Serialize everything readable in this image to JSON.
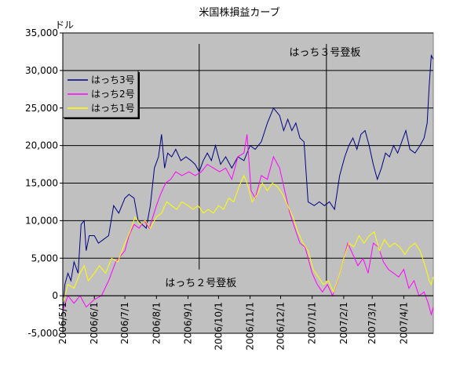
{
  "chart_data": {
    "type": "line",
    "title": "米国株損益カーブ",
    "ylabel": "ドル",
    "xlabel": "",
    "ylim": [
      -5000,
      35000
    ],
    "yticks": [
      -5000,
      0,
      5000,
      10000,
      15000,
      20000,
      25000,
      30000,
      35000
    ],
    "ytick_labels": [
      "-5,000",
      "0",
      "5,000",
      "10,000",
      "15,000",
      "20,000",
      "25,000",
      "30,000",
      "35,000"
    ],
    "xlim": [
      "2006/5/1",
      "2007/4/30"
    ],
    "xticks": [
      "2006/5/1",
      "2006/6/1",
      "2006/7/1",
      "2006/8/1",
      "2006/9/1",
      "2006/10/1",
      "2006/11/1",
      "2006/12/1",
      "2007/1/1",
      "2007/2/1",
      "2007/3/1",
      "2007/4/1"
    ],
    "xtick_labels": [
      "2006/5/1",
      "2006/6/1",
      "2006/7/1",
      "2006/8/1",
      "2006/9/1",
      "2006/10/1",
      "2006/11/1",
      "2006/12/1",
      "2007/1/1",
      "2007/2/1",
      "2007/3/1",
      "2007/4/1"
    ],
    "grid": "horizontal",
    "legend_position": "top-left",
    "plot_background": "#c0c0c0",
    "annotations": [
      {
        "text": "はっち３号登板",
        "x": "2007/1/15",
        "label_y": 32500,
        "label_side": "right"
      },
      {
        "text": "はっち２号登板",
        "x": "2006/9/12",
        "label_y": 1800,
        "label_side": "center"
      }
    ],
    "series": [
      {
        "name": "はっち3号",
        "color": "#000080",
        "points": [
          [
            "2006/5/1",
            -2500
          ],
          [
            "2006/5/3",
            1500
          ],
          [
            "2006/5/6",
            3000
          ],
          [
            "2006/5/9",
            2000
          ],
          [
            "2006/5/12",
            4500
          ],
          [
            "2006/5/16",
            3000
          ],
          [
            "2006/5/19",
            9500
          ],
          [
            "2006/5/22",
            10000
          ],
          [
            "2006/5/24",
            6000
          ],
          [
            "2006/5/27",
            8000
          ],
          [
            "2006/6/1",
            8000
          ],
          [
            "2006/6/5",
            7000
          ],
          [
            "2006/6/10",
            7500
          ],
          [
            "2006/6/15",
            8000
          ],
          [
            "2006/6/20",
            12000
          ],
          [
            "2006/6/25",
            11000
          ],
          [
            "2006/7/1",
            13000
          ],
          [
            "2006/7/5",
            13500
          ],
          [
            "2006/7/10",
            13000
          ],
          [
            "2006/7/14",
            10000
          ],
          [
            "2006/7/18",
            9500
          ],
          [
            "2006/7/22",
            9000
          ],
          [
            "2006/7/26",
            12000
          ],
          [
            "2006/7/30",
            17000
          ],
          [
            "2006/8/3",
            18500
          ],
          [
            "2006/8/6",
            21500
          ],
          [
            "2006/8/9",
            17000
          ],
          [
            "2006/8/12",
            19000
          ],
          [
            "2006/8/16",
            18500
          ],
          [
            "2006/8/20",
            19500
          ],
          [
            "2006/8/25",
            18000
          ],
          [
            "2006/8/30",
            18500
          ],
          [
            "2006/9/4",
            18000
          ],
          [
            "2006/9/8",
            17500
          ],
          [
            "2006/9/12",
            16500
          ],
          [
            "2006/9/16",
            18000
          ],
          [
            "2006/9/20",
            19000
          ],
          [
            "2006/9/24",
            18000
          ],
          [
            "2006/9/28",
            20000
          ],
          [
            "2006/10/3",
            17500
          ],
          [
            "2006/10/8",
            18500
          ],
          [
            "2006/10/14",
            17000
          ],
          [
            "2006/10/20",
            18500
          ],
          [
            "2006/10/26",
            18000
          ],
          [
            "2006/11/1",
            20000
          ],
          [
            "2006/11/6",
            19500
          ],
          [
            "2006/11/12",
            20500
          ],
          [
            "2006/11/18",
            23000
          ],
          [
            "2006/11/24",
            25000
          ],
          [
            "2006/11/30",
            24000
          ],
          [
            "2006/12/4",
            22000
          ],
          [
            "2006/12/8",
            23500
          ],
          [
            "2006/12/12",
            22000
          ],
          [
            "2006/12/16",
            23000
          ],
          [
            "2006/12/20",
            21000
          ],
          [
            "2006/12/24",
            20500
          ],
          [
            "2006/12/28",
            12500
          ],
          [
            "2007/1/3",
            12000
          ],
          [
            "2007/1/8",
            12500
          ],
          [
            "2007/1/13",
            12000
          ],
          [
            "2007/1/18",
            12500
          ],
          [
            "2007/1/23",
            11500
          ],
          [
            "2007/1/28",
            16000
          ],
          [
            "2007/2/2",
            18500
          ],
          [
            "2007/2/6",
            20000
          ],
          [
            "2007/2/10",
            21000
          ],
          [
            "2007/2/14",
            19500
          ],
          [
            "2007/2/18",
            21500
          ],
          [
            "2007/2/22",
            22000
          ],
          [
            "2007/2/26",
            20000
          ],
          [
            "2007/3/2",
            17500
          ],
          [
            "2007/3/6",
            15500
          ],
          [
            "2007/3/10",
            17000
          ],
          [
            "2007/3/14",
            19000
          ],
          [
            "2007/3/18",
            18500
          ],
          [
            "2007/3/22",
            20000
          ],
          [
            "2007/3/26",
            19000
          ],
          [
            "2007/3/30",
            20500
          ],
          [
            "2007/4/3",
            22000
          ],
          [
            "2007/4/7",
            19500
          ],
          [
            "2007/4/12",
            19000
          ],
          [
            "2007/4/17",
            20000
          ],
          [
            "2007/4/21",
            21000
          ],
          [
            "2007/4/24",
            23000
          ],
          [
            "2007/4/26",
            28000
          ],
          [
            "2007/4/28",
            32000
          ],
          [
            "2007/4/30",
            31500
          ]
        ]
      },
      {
        "name": "はっち2号",
        "color": "#ff00ff",
        "points": [
          [
            "2006/5/1",
            -2000
          ],
          [
            "2006/5/6",
            0
          ],
          [
            "2006/5/12",
            -1000
          ],
          [
            "2006/5/18",
            0
          ],
          [
            "2006/5/24",
            -1500
          ],
          [
            "2006/6/1",
            -500
          ],
          [
            "2006/6/8",
            0
          ],
          [
            "2006/6/15",
            2000
          ],
          [
            "2006/6/22",
            4500
          ],
          [
            "2006/7/1",
            6000
          ],
          [
            "2006/7/5",
            8000
          ],
          [
            "2006/7/10",
            9500
          ],
          [
            "2006/7/15",
            9000
          ],
          [
            "2006/7/20",
            10000
          ],
          [
            "2006/7/25",
            9000
          ],
          [
            "2006/8/1",
            12000
          ],
          [
            "2006/8/5",
            13500
          ],
          [
            "2006/8/10",
            15000
          ],
          [
            "2006/8/15",
            15500
          ],
          [
            "2006/8/20",
            16500
          ],
          [
            "2006/8/26",
            16000
          ],
          [
            "2006/9/2",
            16500
          ],
          [
            "2006/9/8",
            16000
          ],
          [
            "2006/9/14",
            16500
          ],
          [
            "2006/9/20",
            17500
          ],
          [
            "2006/9/26",
            17000
          ],
          [
            "2006/10/2",
            16500
          ],
          [
            "2006/10/8",
            17000
          ],
          [
            "2006/10/14",
            15500
          ],
          [
            "2006/10/20",
            18500
          ],
          [
            "2006/10/26",
            19000
          ],
          [
            "2006/10/29",
            21500
          ],
          [
            "2006/11/2",
            14000
          ],
          [
            "2006/11/6",
            13000
          ],
          [
            "2006/11/12",
            16000
          ],
          [
            "2006/11/18",
            15500
          ],
          [
            "2006/11/24",
            18500
          ],
          [
            "2006/11/30",
            17000
          ],
          [
            "2006/12/5",
            14000
          ],
          [
            "2006/12/10",
            11000
          ],
          [
            "2006/12/15",
            9000
          ],
          [
            "2006/12/20",
            7000
          ],
          [
            "2006/12/25",
            6500
          ],
          [
            "2007/1/1",
            3000
          ],
          [
            "2007/1/6",
            1500
          ],
          [
            "2007/1/11",
            500
          ],
          [
            "2007/1/16",
            1500
          ],
          [
            "2007/1/21",
            0
          ],
          [
            "2007/1/26",
            2000
          ],
          [
            "2007/1/31",
            4500
          ],
          [
            "2007/2/5",
            7000
          ],
          [
            "2007/2/10",
            5500
          ],
          [
            "2007/2/15",
            4000
          ],
          [
            "2007/2/20",
            5000
          ],
          [
            "2007/2/25",
            3000
          ],
          [
            "2007/3/2",
            7000
          ],
          [
            "2007/3/7",
            6500
          ],
          [
            "2007/3/12",
            4500
          ],
          [
            "2007/3/17",
            3500
          ],
          [
            "2007/3/22",
            3000
          ],
          [
            "2007/3/27",
            2500
          ],
          [
            "2007/4/1",
            3500
          ],
          [
            "2007/4/6",
            1000
          ],
          [
            "2007/4/11",
            2000
          ],
          [
            "2007/4/16",
            0
          ],
          [
            "2007/4/21",
            500
          ],
          [
            "2007/4/25",
            -1000
          ],
          [
            "2007/4/28",
            -2500
          ],
          [
            "2007/4/30",
            -1500
          ]
        ]
      },
      {
        "name": "はっち1号",
        "color": "#ffff00",
        "points": [
          [
            "2006/5/1",
            -1000
          ],
          [
            "2006/5/6",
            1500
          ],
          [
            "2006/5/12",
            1000
          ],
          [
            "2006/5/18",
            3000
          ],
          [
            "2006/5/22",
            4000
          ],
          [
            "2006/5/26",
            2000
          ],
          [
            "2006/6/1",
            3000
          ],
          [
            "2006/6/6",
            4000
          ],
          [
            "2006/6/12",
            3000
          ],
          [
            "2006/6/18",
            5000
          ],
          [
            "2006/6/24",
            4500
          ],
          [
            "2006/7/1",
            7000
          ],
          [
            "2006/7/6",
            8500
          ],
          [
            "2006/7/11",
            10500
          ],
          [
            "2006/7/16",
            9500
          ],
          [
            "2006/7/21",
            10000
          ],
          [
            "2006/7/26",
            9000
          ],
          [
            "2006/8/1",
            10500
          ],
          [
            "2006/8/6",
            11000
          ],
          [
            "2006/8/11",
            12500
          ],
          [
            "2006/8/16",
            12000
          ],
          [
            "2006/8/21",
            11500
          ],
          [
            "2006/8/26",
            12500
          ],
          [
            "2006/9/1",
            12000
          ],
          [
            "2006/9/6",
            11500
          ],
          [
            "2006/9/11",
            12000
          ],
          [
            "2006/9/16",
            11000
          ],
          [
            "2006/9/21",
            11500
          ],
          [
            "2006/9/26",
            11000
          ],
          [
            "2006/10/1",
            12000
          ],
          [
            "2006/10/6",
            11500
          ],
          [
            "2006/10/11",
            13000
          ],
          [
            "2006/10/16",
            12500
          ],
          [
            "2006/10/21",
            14500
          ],
          [
            "2006/10/26",
            16000
          ],
          [
            "2006/10/29",
            15000
          ],
          [
            "2006/11/3",
            12500
          ],
          [
            "2006/11/8",
            13500
          ],
          [
            "2006/11/13",
            15000
          ],
          [
            "2006/11/18",
            14000
          ],
          [
            "2006/11/23",
            15000
          ],
          [
            "2006/11/28",
            14500
          ],
          [
            "2006/12/3",
            13500
          ],
          [
            "2006/12/8",
            12000
          ],
          [
            "2006/12/13",
            10500
          ],
          [
            "2006/12/18",
            8500
          ],
          [
            "2006/12/23",
            7000
          ],
          [
            "2006/12/28",
            6000
          ],
          [
            "2007/1/2",
            3500
          ],
          [
            "2007/1/7",
            2500
          ],
          [
            "2007/1/12",
            1500
          ],
          [
            "2007/1/17",
            2000
          ],
          [
            "2007/1/22",
            500
          ],
          [
            "2007/1/27",
            2500
          ],
          [
            "2007/2/1",
            5000
          ],
          [
            "2007/2/6",
            7000
          ],
          [
            "2007/2/11",
            6500
          ],
          [
            "2007/2/16",
            8000
          ],
          [
            "2007/2/21",
            7000
          ],
          [
            "2007/2/26",
            8000
          ],
          [
            "2007/3/3",
            8500
          ],
          [
            "2007/3/8",
            6000
          ],
          [
            "2007/3/13",
            7500
          ],
          [
            "2007/3/18",
            6500
          ],
          [
            "2007/3/23",
            7000
          ],
          [
            "2007/3/28",
            6500
          ],
          [
            "2007/4/2",
            5500
          ],
          [
            "2007/4/7",
            6500
          ],
          [
            "2007/4/12",
            7000
          ],
          [
            "2007/4/17",
            6000
          ],
          [
            "2007/4/22",
            4000
          ],
          [
            "2007/4/26",
            2000
          ],
          [
            "2007/4/28",
            1500
          ],
          [
            "2007/4/30",
            2500
          ]
        ]
      }
    ]
  }
}
